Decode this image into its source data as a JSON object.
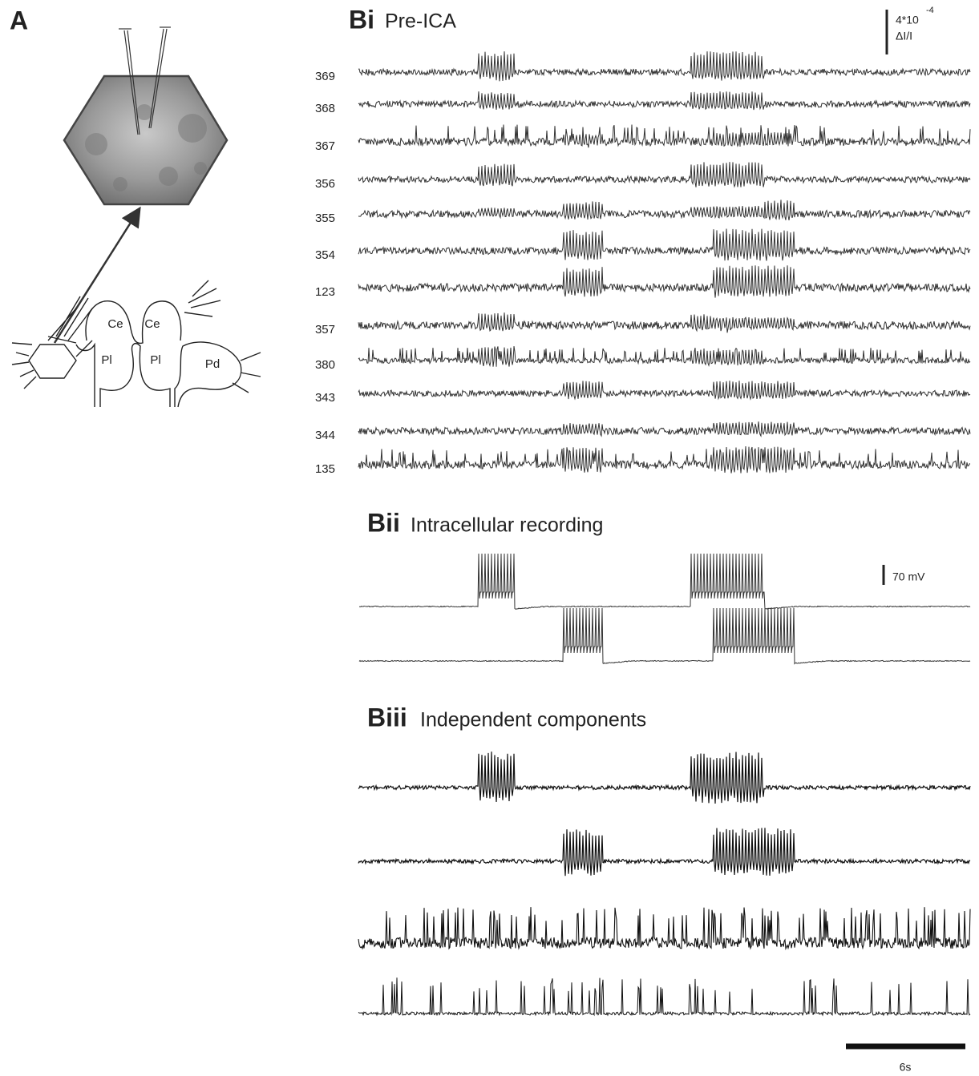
{
  "panel_a": {
    "label": "A",
    "regions": [
      "Ce",
      "Ce",
      "Pl",
      "Pl",
      "Pd"
    ]
  },
  "panel_bi": {
    "label": "Bi",
    "title": "Pre-ICA",
    "traces": [
      "369",
      "368",
      "367",
      "356",
      "355",
      "354",
      "123",
      "357",
      "380",
      "343",
      "344",
      "135"
    ],
    "scale_bar": {
      "base": "4*10",
      "exponent": "-4",
      "unit": "ΔI/I"
    }
  },
  "panel_bii": {
    "label": "Bii",
    "title": "Intracellular recording",
    "scale_bar": "70 mV"
  },
  "panel_biii": {
    "label": "Biii",
    "title": "Independent components"
  },
  "time_scale_bar": "6s"
}
